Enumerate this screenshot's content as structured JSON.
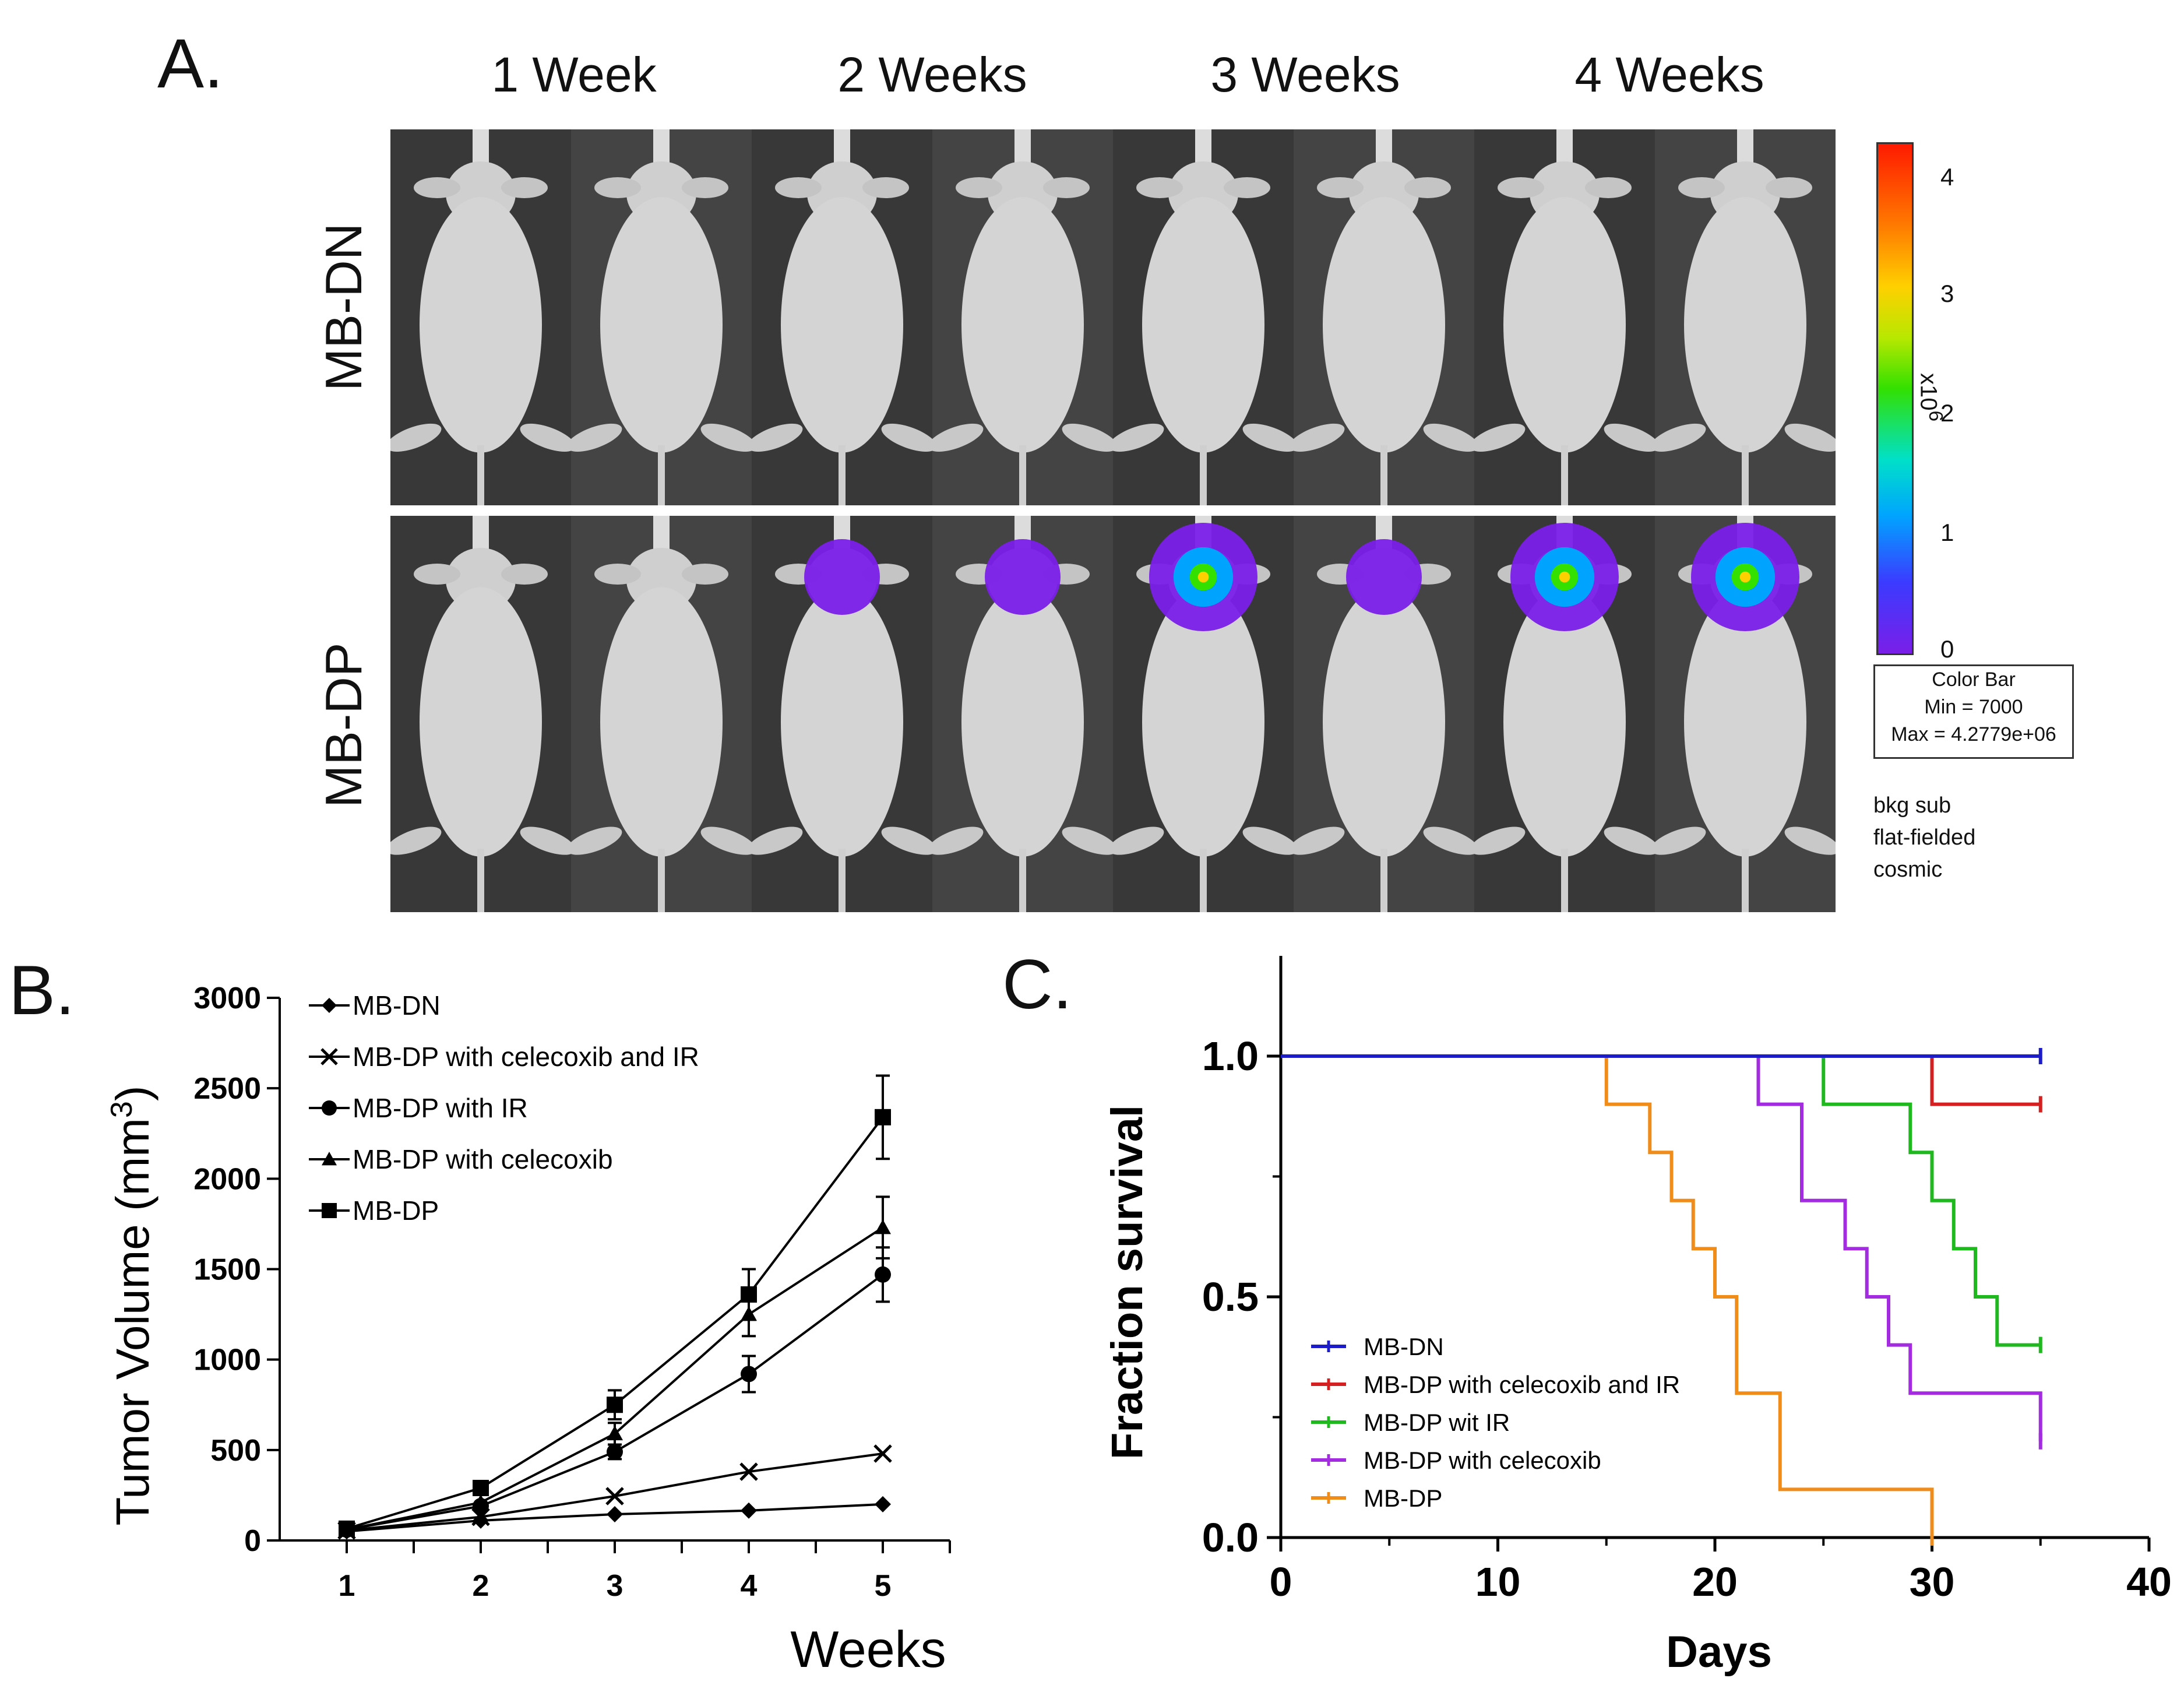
{
  "panelA": {
    "letter": "A.",
    "weeks": [
      "1 Week",
      "2 Weeks",
      "3 Weeks",
      "4 Weeks"
    ],
    "rows": [
      "MB-DN",
      "MB-DP"
    ],
    "colorbar": {
      "ticks": [
        "4",
        "3",
        "2",
        "1",
        "0"
      ],
      "exponent_label": "x10",
      "exponent_power": "6",
      "box_title": "Color Bar",
      "box_min": "Min = 7000",
      "box_max": "Max = 4.2779e+06",
      "colors": [
        "#ff1a00",
        "#ffd000",
        "#33e000",
        "#00a4ff",
        "#7a1fe8"
      ]
    },
    "notes": [
      "bkg sub",
      "flat-fielded",
      "cosmic"
    ]
  },
  "panelB": {
    "letter": "B.",
    "chart_data": {
      "type": "line",
      "x": [
        1,
        2,
        3,
        4,
        5
      ],
      "xlabel": "Weeks",
      "ylabel": "Tumor Volume (mm³)",
      "ylabel_main": "Tumor Volume (mm",
      "ylabel_sup": "3",
      "ylabel_close": ")",
      "ylim": [
        0,
        3000
      ],
      "xlim": [
        0.5,
        5.5
      ],
      "yticks": [
        "0",
        "500",
        "1000",
        "1500",
        "2000",
        "2500",
        "3000"
      ],
      "xticks": [
        "1",
        "2",
        "3",
        "4",
        "5"
      ],
      "series": [
        {
          "name": "MB-DN",
          "marker": "diamond",
          "values": [
            50,
            110,
            145,
            165,
            200
          ],
          "errors": [
            0,
            0,
            0,
            0,
            0
          ]
        },
        {
          "name": "MB-DP with celecoxib and IR",
          "marker": "x",
          "values": [
            55,
            130,
            245,
            380,
            480
          ],
          "errors": [
            0,
            0,
            0,
            0,
            0
          ]
        },
        {
          "name": "MB-DP with IR",
          "marker": "circle",
          "values": [
            60,
            190,
            490,
            920,
            1470
          ],
          "errors": [
            0,
            0,
            40,
            100,
            150
          ]
        },
        {
          "name": "MB-DP with celecoxib",
          "marker": "triangle",
          "values": [
            60,
            210,
            590,
            1250,
            1730
          ],
          "errors": [
            0,
            0,
            60,
            120,
            170
          ]
        },
        {
          "name": "MB-DP",
          "marker": "square",
          "values": [
            65,
            290,
            750,
            1360,
            2340
          ],
          "errors": [
            0,
            0,
            80,
            140,
            230
          ]
        }
      ]
    }
  },
  "panelC": {
    "letter": "C.",
    "chart_data": {
      "type": "line",
      "subtype": "kaplan-meier",
      "xlabel": "Days",
      "ylabel": "Fraction survival",
      "xlim": [
        0,
        40
      ],
      "ylim": [
        0,
        1.0
      ],
      "xticks": [
        "0",
        "10",
        "20",
        "30",
        "40"
      ],
      "yticks": [
        "0.0",
        "0.5",
        "1.0"
      ],
      "series": [
        {
          "name": "MB-DN",
          "color": "#1c1cc8",
          "steps": [
            [
              0,
              1.0
            ],
            [
              35,
              1.0
            ]
          ]
        },
        {
          "name": "MB-DP with celecoxib and IR",
          "color": "#d42020",
          "steps": [
            [
              0,
              1.0
            ],
            [
              30,
              0.9
            ],
            [
              35,
              0.9
            ]
          ]
        },
        {
          "name": "MB-DP wit IR",
          "color": "#1fb81f",
          "steps": [
            [
              0,
              1.0
            ],
            [
              25,
              0.9
            ],
            [
              29,
              0.8
            ],
            [
              30,
              0.7
            ],
            [
              31,
              0.6
            ],
            [
              32,
              0.5
            ],
            [
              33,
              0.4
            ],
            [
              35,
              0.4
            ]
          ]
        },
        {
          "name": "MB-DP with celecoxib",
          "color": "#a42ce0",
          "steps": [
            [
              0,
              1.0
            ],
            [
              22,
              0.9
            ],
            [
              24,
              0.7
            ],
            [
              26,
              0.6
            ],
            [
              27,
              0.5
            ],
            [
              28,
              0.4
            ],
            [
              29,
              0.3
            ],
            [
              35,
              0.2
            ]
          ]
        },
        {
          "name": "MB-DP",
          "color": "#f08c1a",
          "steps": [
            [
              0,
              1.0
            ],
            [
              15,
              0.9
            ],
            [
              17,
              0.8
            ],
            [
              18,
              0.7
            ],
            [
              19,
              0.6
            ],
            [
              20,
              0.5
            ],
            [
              21,
              0.3
            ],
            [
              23,
              0.1
            ],
            [
              30,
              0.0
            ]
          ]
        }
      ]
    }
  }
}
